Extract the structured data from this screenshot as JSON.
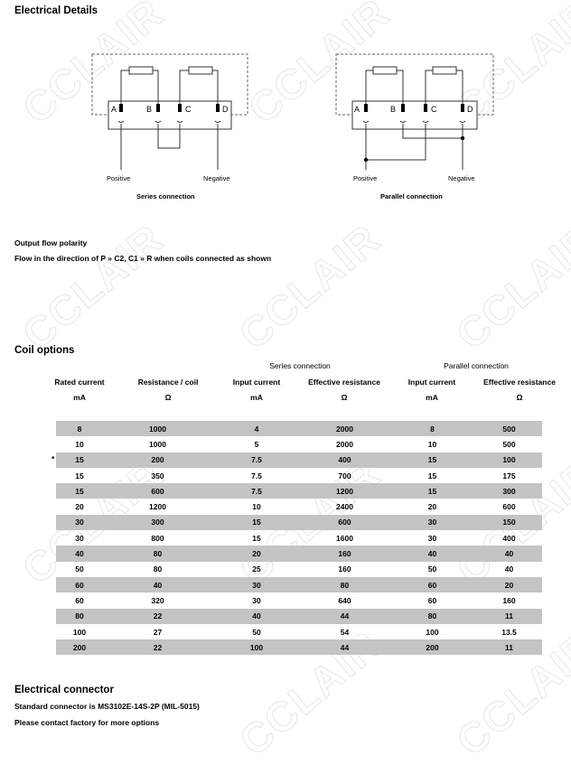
{
  "watermark": "CCLAIR",
  "electrical_details": {
    "title": "Electrical Details",
    "series": {
      "caption": "Series connection",
      "positive": "Positive",
      "negative": "Negative",
      "terminals": [
        "A",
        "B",
        "C",
        "D"
      ]
    },
    "parallel": {
      "caption": "Parallel connection",
      "positive": "Positive",
      "negative": "Negative",
      "terminals": [
        "A",
        "B",
        "C",
        "D"
      ]
    }
  },
  "polarity": {
    "title": "Output flow polarity",
    "text": "Flow in the direction of P » C2, C1 » R when coils connected as shown"
  },
  "coil_options": {
    "title": "Coil options",
    "group_series": "Series connection",
    "group_parallel": "Parallel connection",
    "headers": [
      "Rated current",
      "Resistance / coil",
      "Input current",
      "Effective resistance",
      "Input current",
      "Effective resistance"
    ],
    "units": [
      "mA",
      "Ω",
      "mA",
      "Ω",
      "mA",
      "Ω"
    ],
    "rows": [
      {
        "mark": "",
        "cells": [
          "8",
          "1000",
          "4",
          "2000",
          "8",
          "500"
        ]
      },
      {
        "mark": "",
        "cells": [
          "10",
          "1000",
          "5",
          "2000",
          "10",
          "500"
        ]
      },
      {
        "mark": "*",
        "cells": [
          "15",
          "200",
          "7.5",
          "400",
          "15",
          "100"
        ]
      },
      {
        "mark": "",
        "cells": [
          "15",
          "350",
          "7.5",
          "700",
          "15",
          "175"
        ]
      },
      {
        "mark": "",
        "cells": [
          "15",
          "600",
          "7.5",
          "1200",
          "15",
          "300"
        ]
      },
      {
        "mark": "",
        "cells": [
          "20",
          "1200",
          "10",
          "2400",
          "20",
          "600"
        ]
      },
      {
        "mark": "",
        "cells": [
          "30",
          "300",
          "15",
          "600",
          "30",
          "150"
        ]
      },
      {
        "mark": "",
        "cells": [
          "30",
          "800",
          "15",
          "1600",
          "30",
          "400"
        ]
      },
      {
        "mark": "",
        "cells": [
          "40",
          "80",
          "20",
          "160",
          "40",
          "40"
        ]
      },
      {
        "mark": "",
        "cells": [
          "50",
          "80",
          "25",
          "160",
          "50",
          "40"
        ]
      },
      {
        "mark": "",
        "cells": [
          "60",
          "40",
          "30",
          "80",
          "60",
          "20"
        ]
      },
      {
        "mark": "",
        "cells": [
          "60",
          "320",
          "30",
          "640",
          "60",
          "160"
        ]
      },
      {
        "mark": "",
        "cells": [
          "80",
          "22",
          "40",
          "44",
          "80",
          "11"
        ]
      },
      {
        "mark": "",
        "cells": [
          "100",
          "27",
          "50",
          "54",
          "100",
          "13.5"
        ]
      },
      {
        "mark": "",
        "cells": [
          "200",
          "22",
          "100",
          "44",
          "200",
          "11"
        ]
      }
    ]
  },
  "connector": {
    "title": "Electrical connector",
    "line1": "Standard connector is MS3102E-14S-2P (MIL-5015)",
    "line2": "Please contact factory for more options"
  }
}
